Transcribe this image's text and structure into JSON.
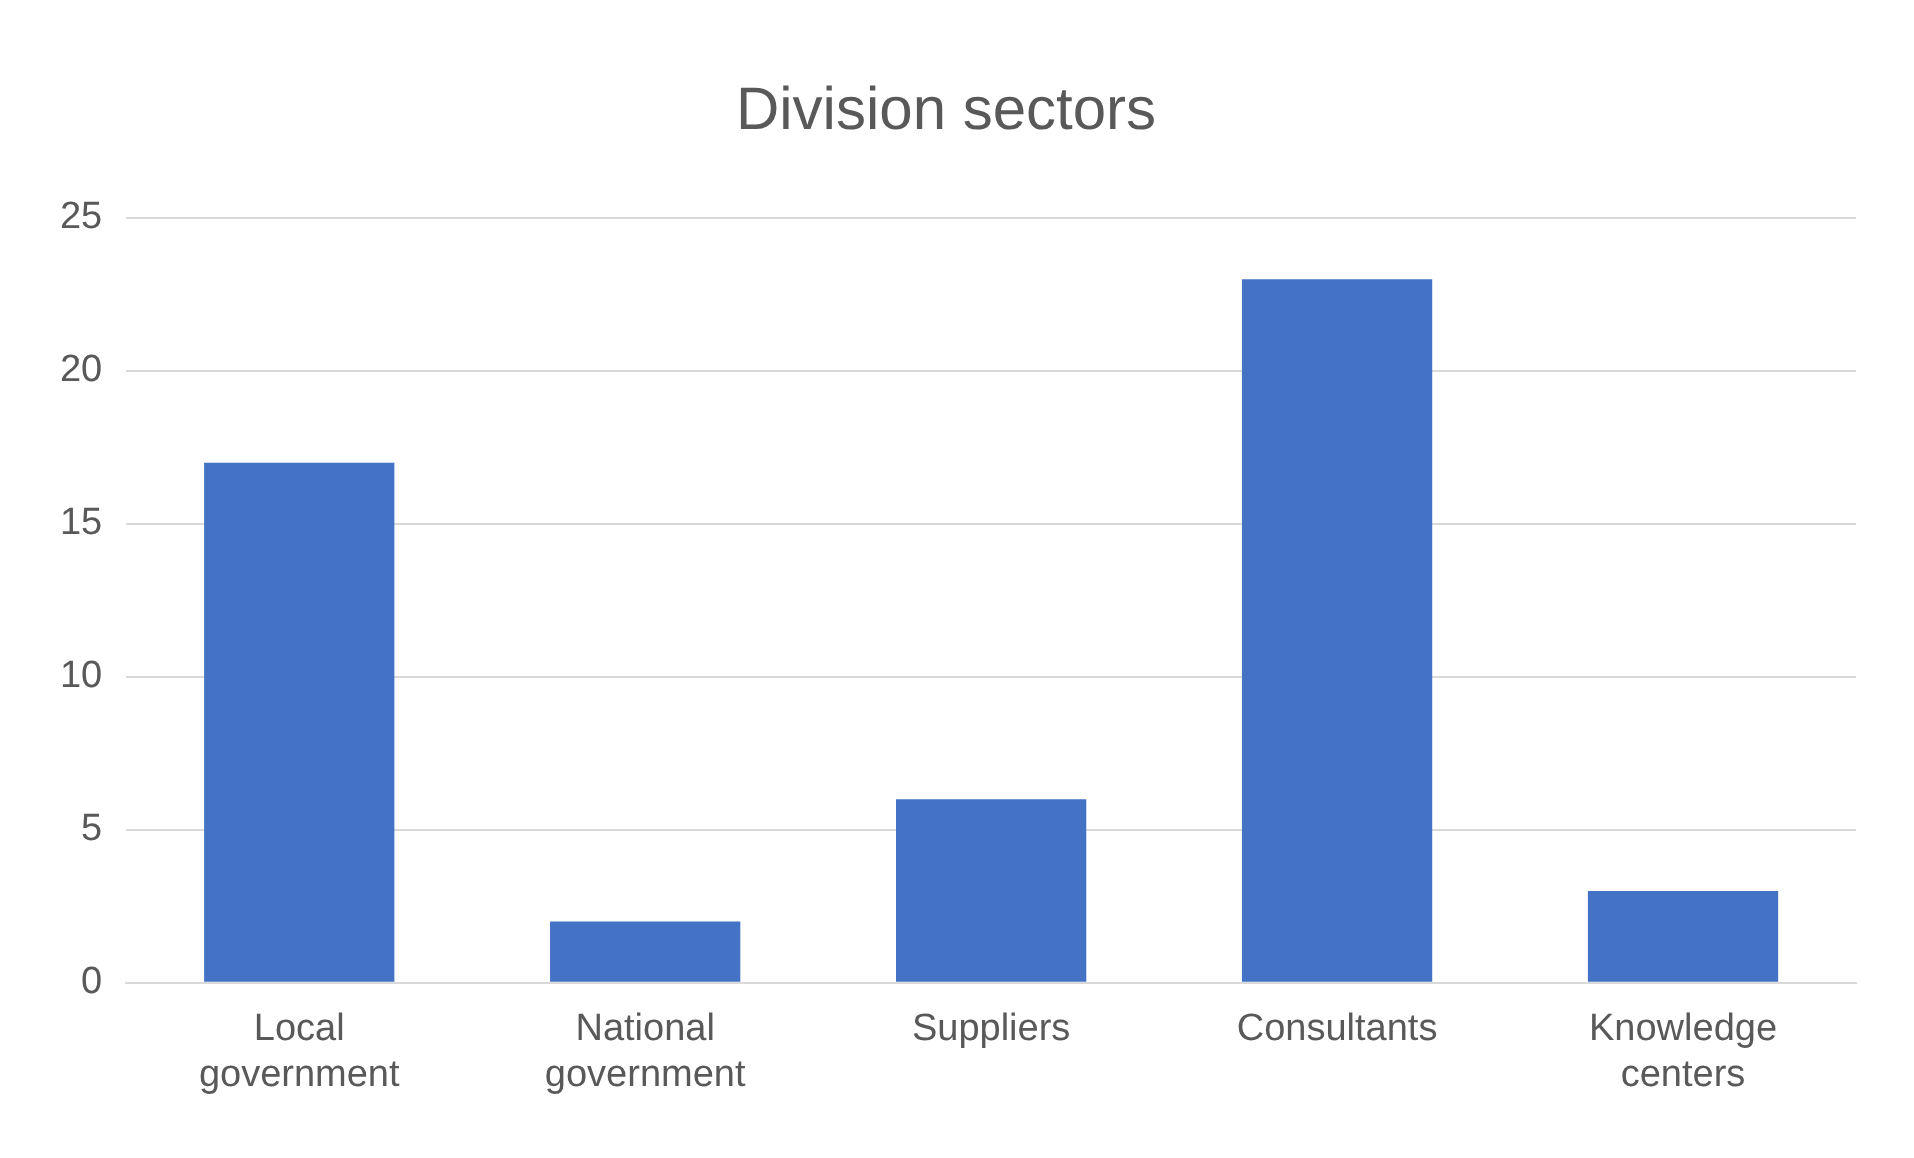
{
  "chart_data": {
    "type": "bar",
    "title": "Division sectors",
    "categories": [
      "Local government",
      "National government",
      "Suppliers",
      "Consultants",
      "Knowledge centers"
    ],
    "values": [
      17,
      2,
      6,
      23,
      3
    ],
    "color": "#4472c4",
    "ylim": [
      0,
      25
    ],
    "yticks": [
      0,
      5,
      10,
      15,
      20,
      25
    ],
    "grid": "y",
    "legend": false
  }
}
